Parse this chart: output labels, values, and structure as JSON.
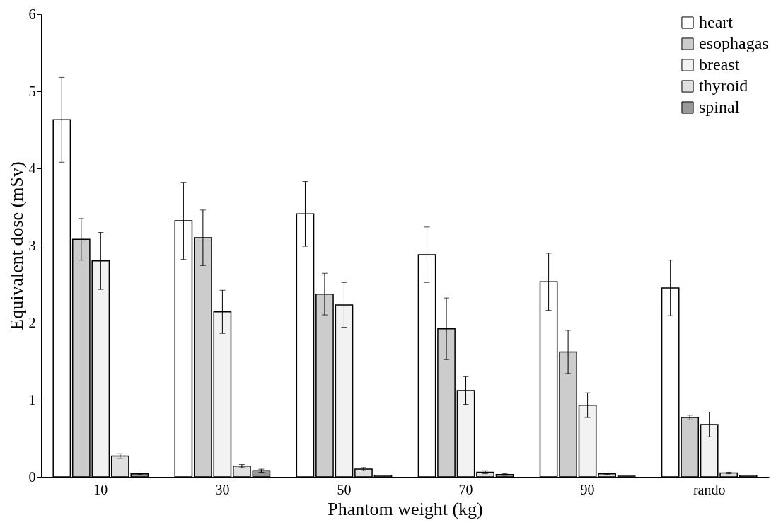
{
  "chart_data": {
    "type": "bar",
    "xlabel": "Phantom weight (kg)",
    "ylabel": "Equivalent dose (mSv)",
    "categories": [
      "10",
      "30",
      "50",
      "70",
      "90",
      "rando"
    ],
    "ylim": [
      0,
      6
    ],
    "yticks": [
      0,
      1,
      2,
      3,
      4,
      5,
      6
    ],
    "grid": false,
    "legend": "top right",
    "series": [
      {
        "name": "heart",
        "color": "#ffffff",
        "values": [
          4.63,
          3.32,
          3.41,
          2.88,
          2.53,
          2.45
        ],
        "errors": [
          0.55,
          0.5,
          0.42,
          0.36,
          0.37,
          0.36
        ]
      },
      {
        "name": "esophagas",
        "color": "#cccccc",
        "values": [
          3.08,
          3.1,
          2.37,
          1.92,
          1.62,
          0.77
        ],
        "errors": [
          0.27,
          0.36,
          0.27,
          0.4,
          0.28,
          0.03
        ]
      },
      {
        "name": "breast",
        "color": "#f2f2f2",
        "values": [
          2.8,
          2.14,
          2.23,
          1.12,
          0.93,
          0.68
        ],
        "errors": [
          0.37,
          0.28,
          0.29,
          0.18,
          0.16,
          0.16
        ]
      },
      {
        "name": "thyroid",
        "color": "#e0e0e0",
        "values": [
          0.27,
          0.14,
          0.1,
          0.06,
          0.04,
          0.05
        ],
        "errors": [
          0.03,
          0.02,
          0.02,
          0.02,
          0.01,
          0.01
        ]
      },
      {
        "name": "spinal",
        "color": "#999999",
        "values": [
          0.04,
          0.08,
          0.02,
          0.03,
          0.02,
          0.02
        ],
        "errors": [
          0.01,
          0.02,
          null,
          0.01,
          null,
          null
        ]
      }
    ]
  }
}
